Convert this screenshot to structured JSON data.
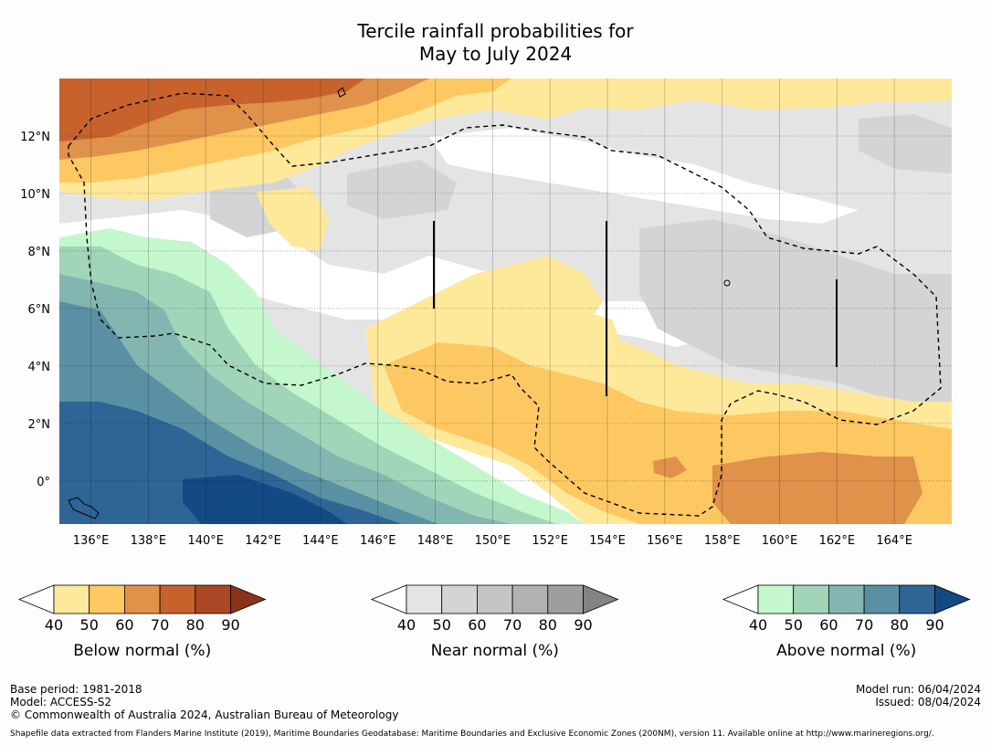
{
  "title": {
    "line1": "Tercile rainfall probabilities for",
    "line2": "May to July 2024"
  },
  "map": {
    "lat_labels": [
      "12°N",
      "10°N",
      "8°N",
      "6°N",
      "4°N",
      "2°N",
      "0°"
    ],
    "lat_values": [
      12,
      10,
      8,
      6,
      4,
      2,
      0
    ],
    "lon_labels": [
      "136°E",
      "138°E",
      "140°E",
      "142°E",
      "144°E",
      "146°E",
      "148°E",
      "150°E",
      "152°E",
      "154°E",
      "156°E",
      "158°E",
      "160°E",
      "162°E",
      "164°E"
    ],
    "lon_values": [
      136,
      138,
      140,
      142,
      144,
      146,
      148,
      150,
      152,
      154,
      156,
      158,
      160,
      162,
      164
    ],
    "lon_range": [
      134.9,
      166.0
    ],
    "lat_range": [
      -1.5,
      14.0
    ]
  },
  "colorbars": {
    "below": {
      "title": "Below normal (%)",
      "ticks": [
        "40",
        "50",
        "60",
        "70",
        "80",
        "90"
      ],
      "colors": [
        "#ffffff",
        "#fee89a",
        "#fdc862",
        "#e0914a",
        "#c8622d",
        "#ab4724",
        "#8b3319"
      ]
    },
    "near": {
      "title": "Near normal (%)",
      "ticks": [
        "40",
        "50",
        "60",
        "70",
        "80",
        "90"
      ],
      "colors": [
        "#ffffff",
        "#e4e4e4",
        "#d4d4d4",
        "#c4c4c4",
        "#b1b1b1",
        "#9e9e9e",
        "#838383"
      ]
    },
    "above": {
      "title": "Above normal (%)",
      "ticks": [
        "40",
        "50",
        "60",
        "70",
        "80",
        "90"
      ],
      "colors": [
        "#ffffff",
        "#c4f7cc",
        "#a0d5ba",
        "#83b6b0",
        "#5990a3",
        "#2f6496",
        "#144a84"
      ]
    }
  },
  "footer": {
    "base_period": "Base period: 1981-2018",
    "model": "Model: ACCESS-S2",
    "copyright": "© Commonwealth of Australia 2024, Australian Bureau of Meteorology",
    "model_run": "Model run: 06/04/2024",
    "issued": "Issued: 08/04/2024",
    "shapefile": "Shapefile data extracted from Flanders Marine Institute (2019), Maritime Boundaries Geodatabase: Maritime Boundaries and Exclusive Economic Zones (200NM), version 11. Available online at http://www.marineregions.org/."
  }
}
